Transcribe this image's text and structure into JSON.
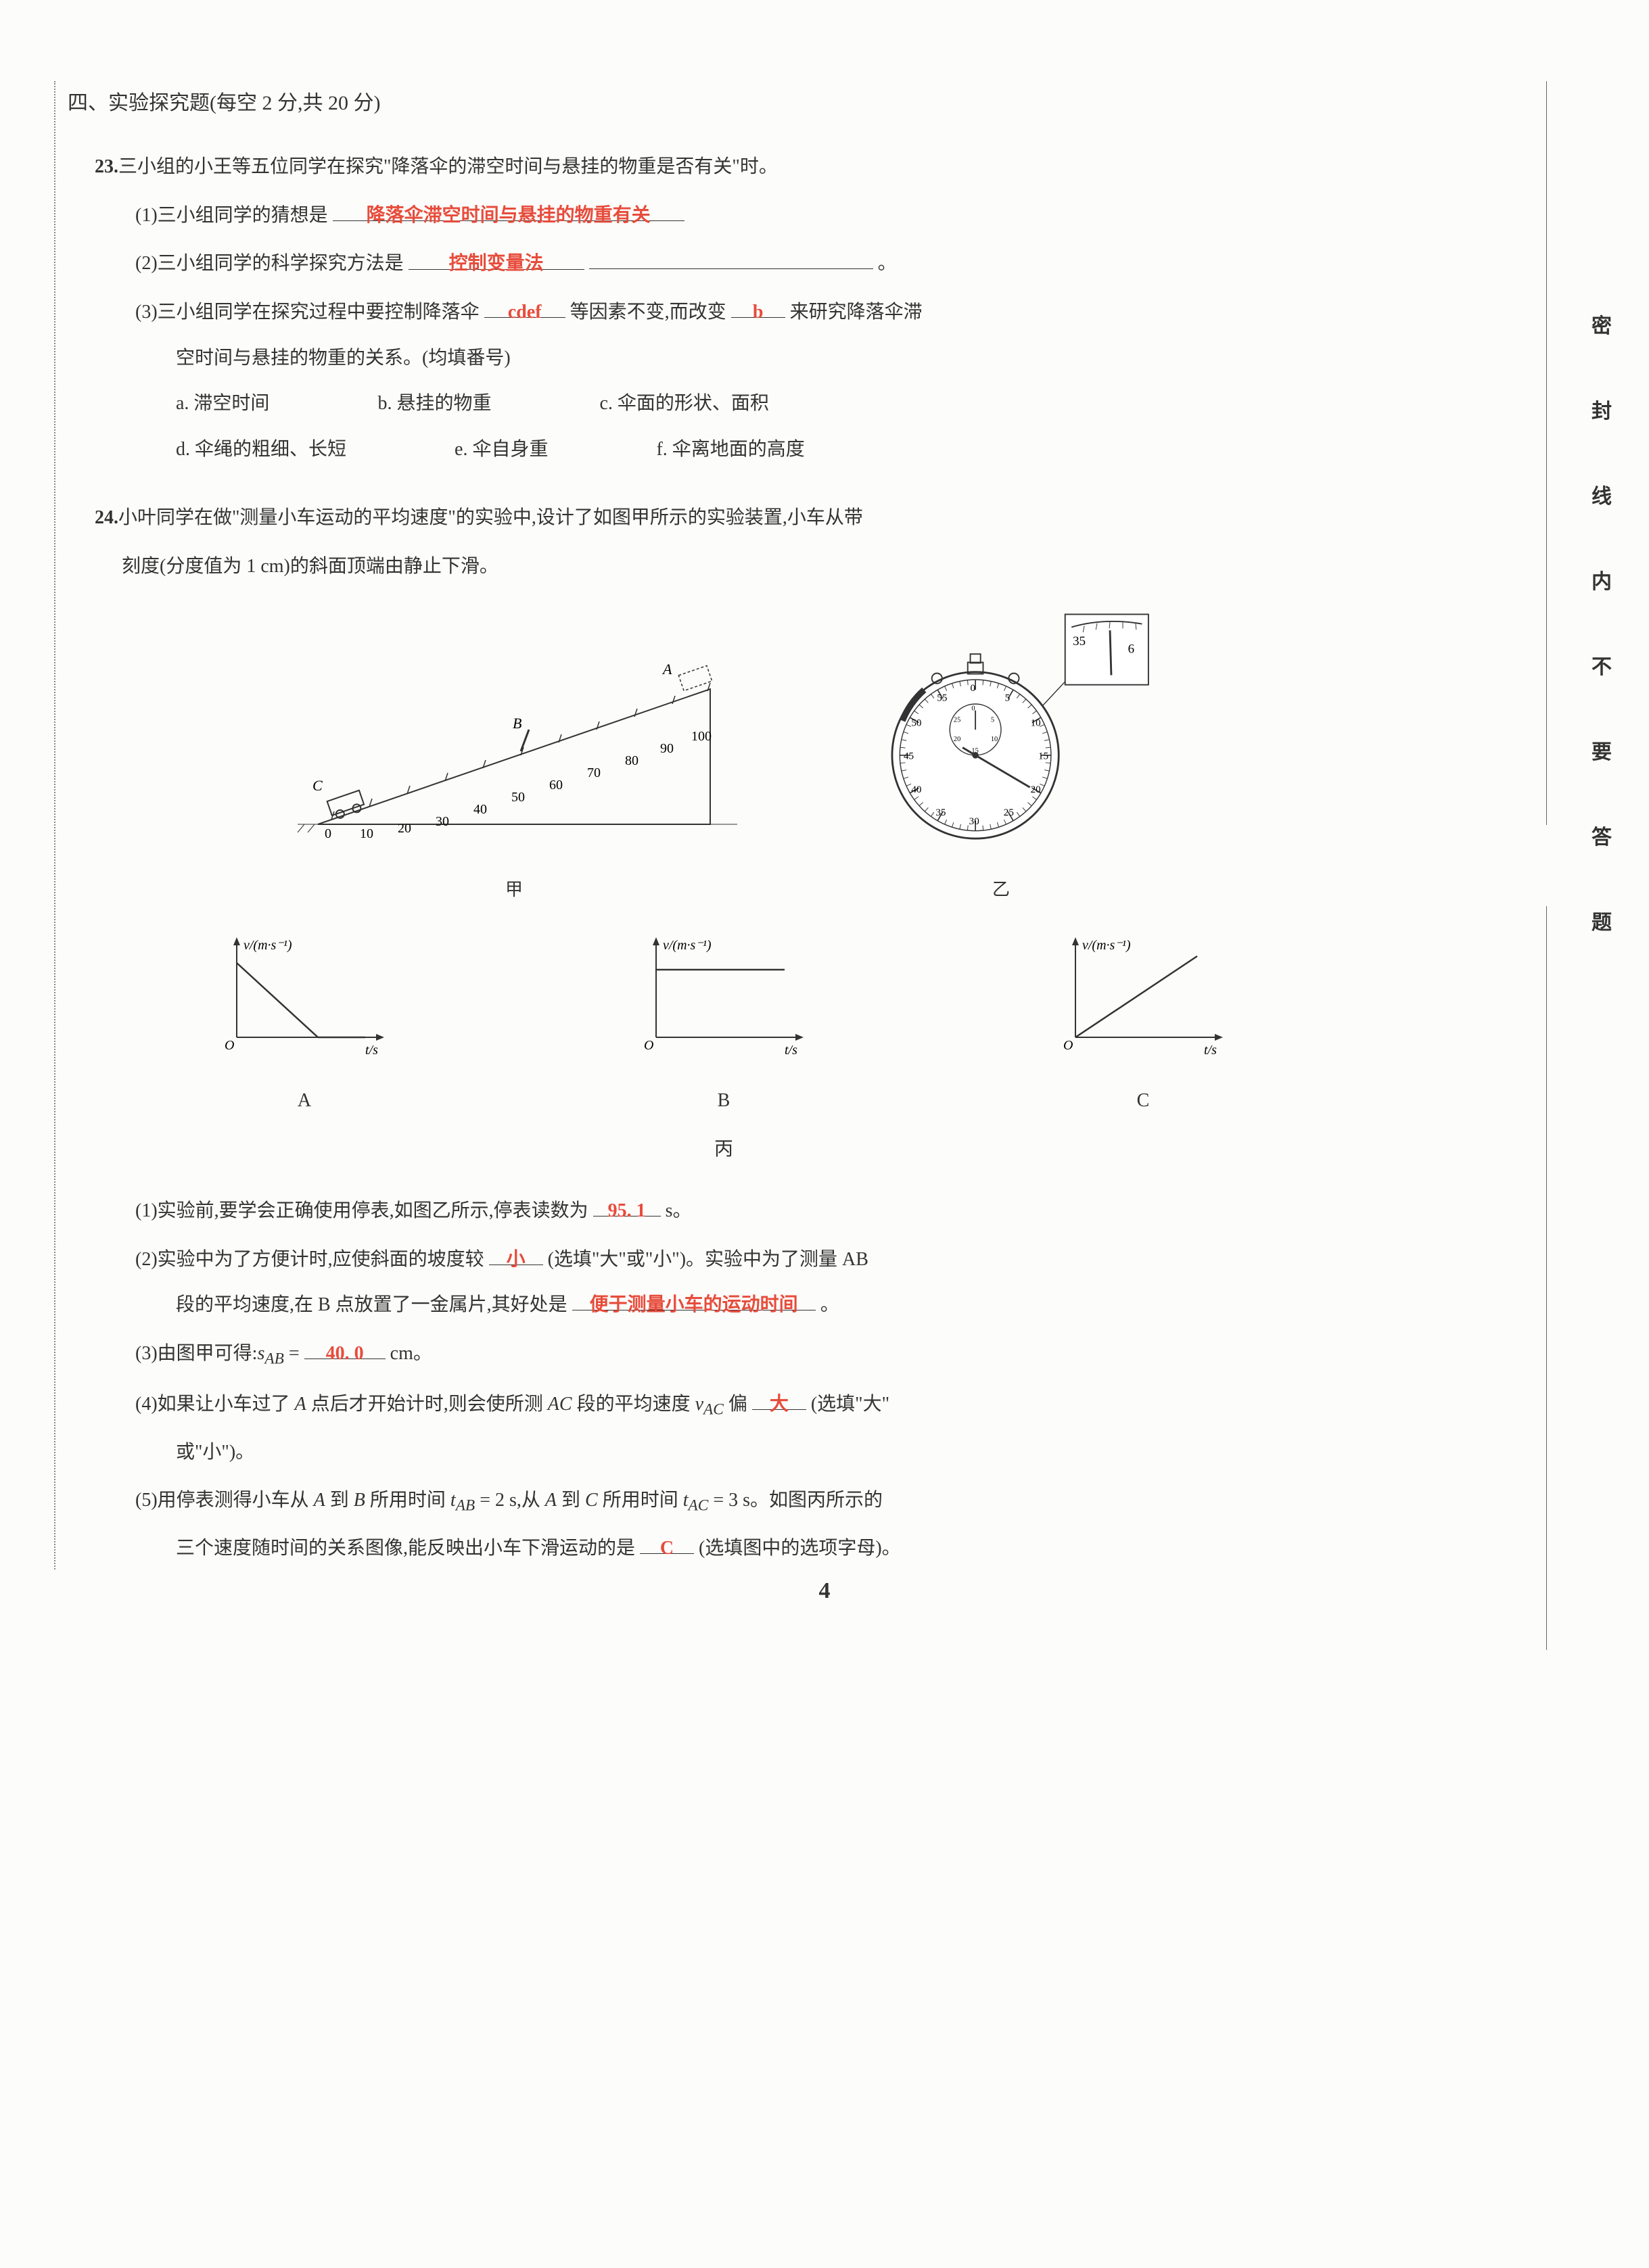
{
  "section": {
    "number": "四",
    "title_prefix": "、实验探究题",
    "scoring": "(每空 2 分,共 20 分)"
  },
  "q23": {
    "num": "23.",
    "stem": "三小组的小王等五位同学在探究\"降落伞的滞空时间与悬挂的物重是否有关\"时。",
    "p1_label": "(1)三小组同学的猜想是",
    "p1_answer": "降落伞滞空时间与悬挂的物重有关",
    "p1_tail": "",
    "p2_label": "(2)三小组同学的科学探究方法是",
    "p2_answer": "控制变量法",
    "p2_tail": "。",
    "p3_label": "(3)三小组同学在探究过程中要控制降落伞",
    "p3_ans1": "cdef",
    "p3_mid": "等因素不变,而改变",
    "p3_ans2": "b",
    "p3_tail": "来研究降落伞滞",
    "p3_line2": "空时间与悬挂的物重的关系。(均填番号)",
    "opts": {
      "a": "a. 滞空时间",
      "b": "b. 悬挂的物重",
      "c": "c. 伞面的形状、面积",
      "d": "d. 伞绳的粗细、长短",
      "e": "e. 伞自身重",
      "f": "f. 伞离地面的高度"
    }
  },
  "q24": {
    "num": "24.",
    "stem1": "小叶同学在做\"测量小车运动的平均速度\"的实验中,设计了如图甲所示的实验装置,小车从带",
    "stem2": "刻度(分度值为 1 cm)的斜面顶端由静止下滑。",
    "ramp": {
      "ticks": [
        "0",
        "10",
        "20",
        "30",
        "40",
        "50",
        "60",
        "70",
        "80",
        "90",
        "100"
      ],
      "label_A": "A",
      "label_B": "B",
      "label_C": "C",
      "caption": "甲"
    },
    "stopwatch": {
      "caption": "乙",
      "outer_numbers": [
        "0",
        "5",
        "10",
        "15",
        "20",
        "25",
        "30",
        "35",
        "40",
        "45",
        "50",
        "55"
      ],
      "inner_numbers": [
        "0",
        "5",
        "10",
        "15",
        "20",
        "25"
      ],
      "magnifier_numbers": [
        "35",
        "6"
      ]
    },
    "charts": {
      "y_label": "v/(m·s⁻¹)",
      "x_label": "t/s",
      "A": "A",
      "B": "B",
      "C": "C",
      "caption": "丙"
    },
    "p1_label": "(1)实验前,要学会正确使用停表,如图乙所示,停表读数为",
    "p1_ans": "95. 1",
    "p1_tail": " s。",
    "p2_label": "(2)实验中为了方便计时,应使斜面的坡度较",
    "p2_ans": "小",
    "p2_mid": "(选填\"大\"或\"小\")。实验中为了测量 AB",
    "p2_line2a": "段的平均速度,在 B 点放置了一金属片,其好处是",
    "p2_ans2": "便于测量小车的运动时间",
    "p2_line2b": "。",
    "p3_label": "(3)由图甲可得:",
    "p3_var": "s_AB",
    "p3_ans": "40. 0",
    "p3_tail": " cm。",
    "p4_label": "(4)如果让小车过了 A 点后才开始计时,则会使所测 AC 段的平均速度 v_AC 偏",
    "p4_ans": "大",
    "p4_tail": "(选填\"大\"",
    "p4_line2": "或\"小\")。",
    "p5_label": "(5)用停表测得小车从 A 到 B 所用时间 t_AB = 2 s,从 A 到 C 所用时间 t_AC = 3 s。如图丙所示的",
    "p5_line2a": "三个速度随时间的关系图像,能反映出小车下滑运动的是",
    "p5_ans": "C",
    "p5_line2b": "(选填图中的选项字母)。"
  },
  "margin_chars": [
    "密",
    "封",
    "线",
    "内",
    "不",
    "要",
    "答",
    "题"
  ],
  "page_number": "4"
}
